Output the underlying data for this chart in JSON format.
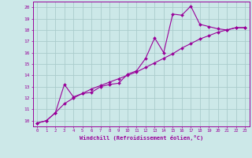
{
  "xlabel": "Windchill (Refroidissement éolien,°C)",
  "background_color": "#cce8e8",
  "line_color": "#990099",
  "grid_color": "#aacccc",
  "xlim": [
    -0.5,
    23.5
  ],
  "ylim": [
    9.5,
    20.5
  ],
  "xticks": [
    0,
    1,
    2,
    3,
    4,
    5,
    6,
    7,
    8,
    9,
    10,
    11,
    12,
    13,
    14,
    15,
    16,
    17,
    18,
    19,
    20,
    21,
    22,
    23
  ],
  "yticks": [
    10,
    11,
    12,
    13,
    14,
    15,
    16,
    17,
    18,
    19,
    20
  ],
  "line1_x": [
    0,
    1,
    2,
    3,
    4,
    5,
    6,
    7,
    8,
    9,
    10,
    11,
    12,
    13,
    14,
    15,
    16,
    17,
    18,
    19,
    20,
    21,
    22,
    23
  ],
  "line1_y": [
    9.8,
    10.0,
    10.7,
    13.2,
    12.1,
    12.4,
    12.5,
    13.0,
    13.2,
    13.3,
    14.1,
    14.4,
    15.5,
    17.3,
    16.0,
    19.4,
    19.3,
    20.1,
    18.5,
    18.3,
    18.1,
    18.0,
    18.2,
    18.2
  ],
  "line2_x": [
    0,
    1,
    2,
    3,
    4,
    5,
    6,
    7,
    8,
    9,
    10,
    11,
    12,
    13,
    14,
    15,
    16,
    17,
    18,
    19,
    20,
    21,
    22,
    23
  ],
  "line2_y": [
    9.8,
    10.0,
    10.7,
    11.5,
    12.0,
    12.4,
    12.8,
    13.1,
    13.4,
    13.7,
    14.0,
    14.3,
    14.7,
    15.1,
    15.5,
    15.9,
    16.4,
    16.8,
    17.2,
    17.5,
    17.8,
    18.0,
    18.2,
    18.2
  ]
}
